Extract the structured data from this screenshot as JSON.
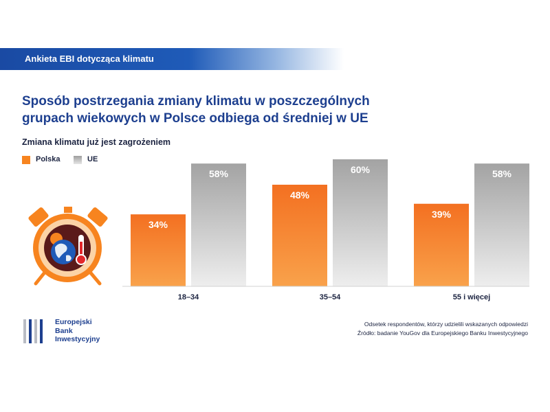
{
  "header": {
    "banner_label": "Ankieta EBI dotycząca klimatu"
  },
  "title_lines": [
    "Sposób postrzegania zmiany klimatu w poszczególnych",
    "grupach wiekowych w Polsce odbiega od średniej w UE"
  ],
  "icon": "alarm-clock-globe-thermometer-icon",
  "chart_data": {
    "type": "bar",
    "subtitle": "Zmiana klimatu już jest zagrożeniem",
    "categories": [
      "18–34",
      "35–54",
      "55 i więcej"
    ],
    "series": [
      {
        "name": "Polska",
        "values": [
          34,
          48,
          39
        ],
        "labels": [
          "34%",
          "48%",
          "39%"
        ],
        "color": "#f7841f"
      },
      {
        "name": "UE",
        "values": [
          58,
          60,
          58
        ],
        "labels": [
          "58%",
          "60%",
          "58%"
        ],
        "color": "#b9b9b9"
      }
    ],
    "ylim": [
      0,
      60
    ],
    "legend_position": "top-left",
    "grid": false
  },
  "footnote": {
    "line1": "Odsetek respondentów, którzy udzielili wskazanych odpowiedzi",
    "line2": "Źródło: badanie YouGov dla Europejskiego Banku Inwestycyjnego"
  },
  "logo": {
    "lines": [
      "Europejski",
      "Bank",
      "Inwestycyjny"
    ],
    "color": "#1d3f8f"
  }
}
